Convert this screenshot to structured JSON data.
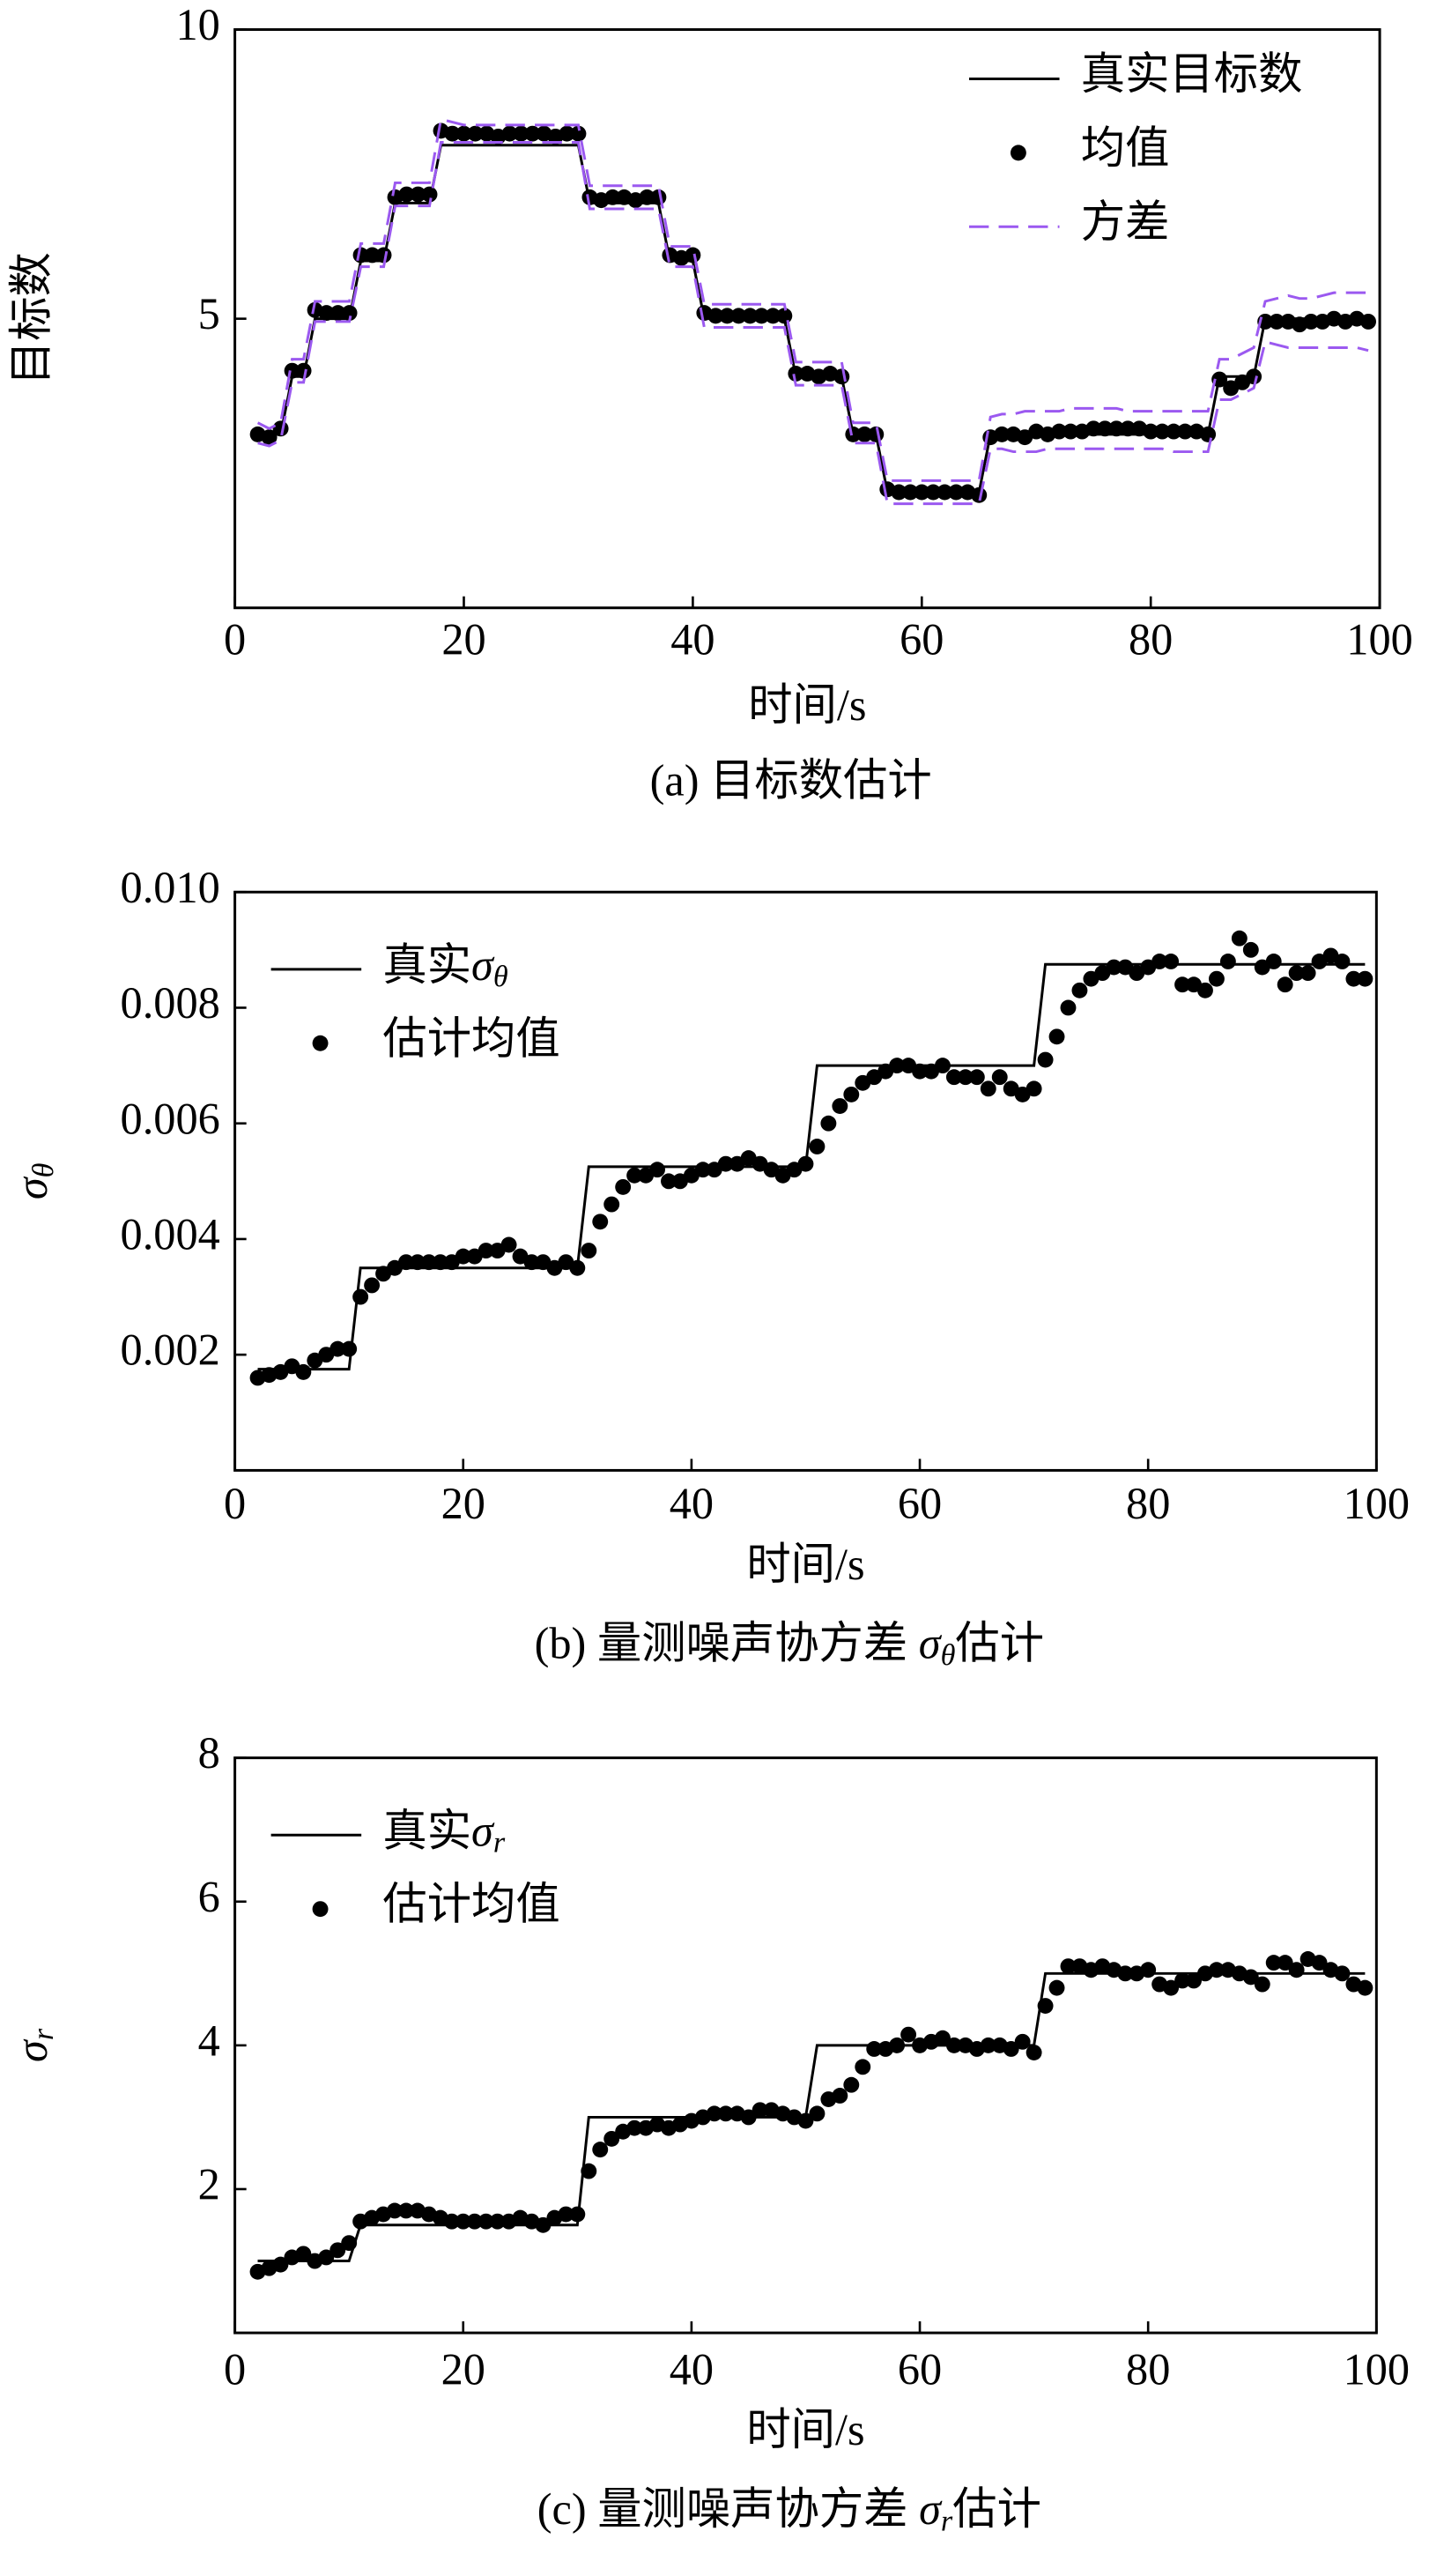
{
  "chart_data": [
    {
      "type": "line",
      "caption": "(a) 目标数估计",
      "xlabel": "时间/s",
      "ylabel": "目标数",
      "legend": "upper right",
      "xlim": [
        0,
        100
      ],
      "xticks": [
        0,
        20,
        40,
        60,
        80,
        100
      ],
      "ylim": [
        0,
        10
      ],
      "yticks": [
        5,
        10
      ],
      "x": [
        2,
        3,
        4,
        5,
        6,
        7,
        8,
        9,
        10,
        11,
        12,
        13,
        14,
        15,
        16,
        17,
        18,
        19,
        20,
        21,
        22,
        23,
        24,
        25,
        26,
        27,
        28,
        29,
        30,
        31,
        32,
        33,
        34,
        35,
        36,
        37,
        38,
        39,
        40,
        41,
        42,
        43,
        44,
        45,
        46,
        47,
        48,
        49,
        50,
        51,
        52,
        53,
        54,
        55,
        56,
        57,
        58,
        59,
        60,
        61,
        62,
        63,
        64,
        65,
        66,
        67,
        68,
        69,
        70,
        71,
        72,
        73,
        74,
        75,
        76,
        77,
        78,
        79,
        80,
        81,
        82,
        83,
        84,
        85,
        86,
        87,
        88,
        89,
        90,
        91,
        92,
        93,
        94,
        95,
        96,
        97,
        98,
        99
      ],
      "series": [
        {
          "name": "真实目标数",
          "style": "line",
          "color": "#000000",
          "values": [
            3,
            3,
            3,
            4,
            4,
            5,
            5,
            5,
            5,
            6,
            6,
            6,
            7,
            7,
            7,
            7,
            8,
            8,
            8,
            8,
            8,
            8,
            8,
            8,
            8,
            8,
            8,
            8,
            8,
            7,
            7,
            7,
            7,
            7,
            7,
            7,
            6,
            6,
            6,
            5,
            5,
            5,
            5,
            5,
            5,
            5,
            5,
            4,
            4,
            4,
            4,
            4,
            3,
            3,
            3,
            2,
            2,
            2,
            2,
            2,
            2,
            2,
            2,
            2,
            3,
            3,
            3,
            3,
            3,
            3,
            3,
            3,
            3,
            3,
            3,
            3,
            3,
            3,
            3,
            3,
            3,
            3,
            3,
            3,
            4,
            4,
            4,
            4,
            5,
            5,
            5,
            5,
            5,
            5,
            5,
            5,
            5,
            5
          ]
        },
        {
          "name": "均值",
          "style": "dots",
          "color": "#000000",
          "values": [
            3.0,
            2.95,
            3.1,
            4.1,
            4.1,
            5.15,
            5.1,
            5.1,
            5.1,
            6.1,
            6.1,
            6.1,
            7.1,
            7.15,
            7.15,
            7.15,
            8.25,
            8.2,
            8.2,
            8.2,
            8.2,
            8.15,
            8.2,
            8.2,
            8.2,
            8.2,
            8.15,
            8.2,
            8.2,
            7.1,
            7.05,
            7.1,
            7.1,
            7.05,
            7.1,
            7.1,
            6.1,
            6.05,
            6.1,
            5.1,
            5.05,
            5.05,
            5.05,
            5.05,
            5.05,
            5.05,
            5.05,
            4.05,
            4.05,
            4.0,
            4.05,
            4.0,
            3.0,
            3.0,
            3.0,
            2.05,
            2.0,
            2.0,
            2.0,
            2.0,
            2.0,
            2.0,
            2.0,
            1.95,
            2.95,
            3.0,
            3.0,
            2.95,
            3.05,
            3.0,
            3.05,
            3.05,
            3.05,
            3.1,
            3.1,
            3.1,
            3.1,
            3.1,
            3.05,
            3.05,
            3.05,
            3.05,
            3.05,
            3.0,
            3.95,
            3.8,
            3.9,
            4.0,
            4.95,
            4.95,
            4.95,
            4.9,
            4.95,
            4.95,
            5.0,
            4.95,
            5.0,
            4.95
          ]
        },
        {
          "name": "方差",
          "style": "band",
          "color": "#9b59f0",
          "upper": [
            3.2,
            3.1,
            3.2,
            4.3,
            4.3,
            5.3,
            5.3,
            5.3,
            5.3,
            6.3,
            6.3,
            6.3,
            7.35,
            7.35,
            7.35,
            7.35,
            8.45,
            8.4,
            8.35,
            8.35,
            8.35,
            8.35,
            8.35,
            8.35,
            8.35,
            8.35,
            8.35,
            8.35,
            8.35,
            7.3,
            7.3,
            7.3,
            7.3,
            7.3,
            7.3,
            7.3,
            6.25,
            6.25,
            6.25,
            5.25,
            5.25,
            5.25,
            5.25,
            5.25,
            5.25,
            5.25,
            5.25,
            4.25,
            4.25,
            4.25,
            4.25,
            4.25,
            3.2,
            3.2,
            3.2,
            2.2,
            2.2,
            2.2,
            2.2,
            2.2,
            2.2,
            2.2,
            2.2,
            2.2,
            3.3,
            3.35,
            3.35,
            3.4,
            3.4,
            3.4,
            3.4,
            3.45,
            3.45,
            3.45,
            3.45,
            3.45,
            3.4,
            3.4,
            3.4,
            3.4,
            3.4,
            3.4,
            3.4,
            3.4,
            4.3,
            4.3,
            4.4,
            4.5,
            5.3,
            5.35,
            5.4,
            5.35,
            5.35,
            5.4,
            5.45,
            5.45,
            5.45,
            5.45
          ],
          "lower": [
            2.85,
            2.8,
            2.9,
            3.9,
            3.9,
            4.95,
            4.95,
            4.95,
            4.95,
            5.9,
            5.9,
            5.9,
            6.95,
            6.95,
            6.95,
            6.95,
            8.05,
            8.05,
            8.05,
            8.05,
            8.05,
            8.05,
            8.05,
            8.05,
            8.05,
            8.05,
            8.05,
            8.05,
            8.05,
            6.9,
            6.9,
            6.9,
            6.9,
            6.9,
            6.9,
            6.9,
            5.9,
            5.9,
            5.9,
            4.85,
            4.85,
            4.85,
            4.85,
            4.85,
            4.85,
            4.85,
            4.85,
            3.85,
            3.85,
            3.85,
            3.85,
            3.85,
            2.85,
            2.85,
            2.85,
            1.8,
            1.8,
            1.8,
            1.8,
            1.8,
            1.8,
            1.8,
            1.8,
            1.8,
            2.75,
            2.75,
            2.7,
            2.7,
            2.7,
            2.75,
            2.75,
            2.75,
            2.75,
            2.75,
            2.75,
            2.75,
            2.75,
            2.75,
            2.75,
            2.75,
            2.7,
            2.7,
            2.7,
            2.7,
            3.6,
            3.6,
            3.7,
            3.8,
            4.6,
            4.55,
            4.5,
            4.5,
            4.5,
            4.5,
            4.5,
            4.5,
            4.5,
            4.45
          ]
        }
      ]
    },
    {
      "type": "line",
      "caption": "(b) 量测噪声协方差 σθ估计",
      "xlabel": "时间/s",
      "ylabel": "σθ",
      "legend": "upper left",
      "xlim": [
        0,
        100
      ],
      "xticks": [
        0,
        20,
        40,
        60,
        80,
        100
      ],
      "ylim": [
        0,
        0.01
      ],
      "yticks": [
        0.002,
        0.004,
        0.006,
        0.008,
        {
          "value": 0.01,
          "label": "0.010"
        }
      ],
      "x": [
        2,
        3,
        4,
        5,
        6,
        7,
        8,
        9,
        10,
        11,
        12,
        13,
        14,
        15,
        16,
        17,
        18,
        19,
        20,
        21,
        22,
        23,
        24,
        25,
        26,
        27,
        28,
        29,
        30,
        31,
        32,
        33,
        34,
        35,
        36,
        37,
        38,
        39,
        40,
        41,
        42,
        43,
        44,
        45,
        46,
        47,
        48,
        49,
        50,
        51,
        52,
        53,
        54,
        55,
        56,
        57,
        58,
        59,
        60,
        61,
        62,
        63,
        64,
        65,
        66,
        67,
        68,
        69,
        70,
        71,
        72,
        73,
        74,
        75,
        76,
        77,
        78,
        79,
        80,
        81,
        82,
        83,
        84,
        85,
        86,
        87,
        88,
        89,
        90,
        91,
        92,
        93,
        94,
        95,
        96,
        97,
        98,
        99
      ],
      "series": [
        {
          "name": "真实σθ",
          "style": "line",
          "color": "#000000",
          "values": [
            0.00175,
            0.00175,
            0.00175,
            0.00175,
            0.00175,
            0.00175,
            0.00175,
            0.00175,
            0.00175,
            0.0035,
            0.0035,
            0.0035,
            0.0035,
            0.0035,
            0.0035,
            0.0035,
            0.0035,
            0.0035,
            0.0035,
            0.0035,
            0.0035,
            0.0035,
            0.0035,
            0.0035,
            0.0035,
            0.0035,
            0.0035,
            0.0035,
            0.0035,
            0.00525,
            0.00525,
            0.00525,
            0.00525,
            0.00525,
            0.00525,
            0.00525,
            0.00525,
            0.00525,
            0.00525,
            0.00525,
            0.00525,
            0.00525,
            0.00525,
            0.00525,
            0.00525,
            0.00525,
            0.00525,
            0.00525,
            0.00525,
            0.007,
            0.007,
            0.007,
            0.007,
            0.007,
            0.007,
            0.007,
            0.007,
            0.007,
            0.007,
            0.007,
            0.007,
            0.007,
            0.007,
            0.007,
            0.007,
            0.007,
            0.007,
            0.007,
            0.007,
            0.00875,
            0.00875,
            0.00875,
            0.00875,
            0.00875,
            0.00875,
            0.00875,
            0.00875,
            0.00875,
            0.00875,
            0.00875,
            0.00875,
            0.00875,
            0.00875,
            0.00875,
            0.00875,
            0.00875,
            0.00875,
            0.00875,
            0.00875,
            0.00875,
            0.00875,
            0.00875,
            0.00875,
            0.00875,
            0.00875,
            0.00875,
            0.00875,
            0.00875
          ]
        },
        {
          "name": "估计均值",
          "style": "dots",
          "color": "#000000",
          "values": [
            0.0016,
            0.00165,
            0.0017,
            0.0018,
            0.0017,
            0.0019,
            0.002,
            0.0021,
            0.0021,
            0.003,
            0.0032,
            0.0034,
            0.0035,
            0.0036,
            0.0036,
            0.0036,
            0.0036,
            0.0036,
            0.0037,
            0.0037,
            0.0038,
            0.0038,
            0.0039,
            0.0037,
            0.0036,
            0.0036,
            0.0035,
            0.0036,
            0.0035,
            0.0038,
            0.0043,
            0.0046,
            0.0049,
            0.0051,
            0.0051,
            0.0052,
            0.005,
            0.005,
            0.0051,
            0.0052,
            0.0052,
            0.0053,
            0.0053,
            0.0054,
            0.0053,
            0.0052,
            0.0051,
            0.0052,
            0.0053,
            0.0056,
            0.006,
            0.0063,
            0.0065,
            0.0067,
            0.0068,
            0.0069,
            0.007,
            0.007,
            0.0069,
            0.0069,
            0.007,
            0.0068,
            0.0068,
            0.0068,
            0.0066,
            0.0068,
            0.0066,
            0.0065,
            0.0066,
            0.0071,
            0.0075,
            0.008,
            0.0083,
            0.0085,
            0.0086,
            0.0087,
            0.0087,
            0.0086,
            0.0087,
            0.0088,
            0.0088,
            0.0084,
            0.0084,
            0.0083,
            0.0085,
            0.0088,
            0.0092,
            0.009,
            0.0087,
            0.0088,
            0.0084,
            0.0086,
            0.0086,
            0.0088,
            0.0089,
            0.0088,
            0.0085,
            0.0085
          ]
        }
      ]
    },
    {
      "type": "line",
      "caption": "(c) 量测噪声协方差 σr估计",
      "xlabel": "时间/s",
      "ylabel": "σr",
      "legend": "upper left",
      "xlim": [
        0,
        100
      ],
      "xticks": [
        0,
        20,
        40,
        60,
        80,
        100
      ],
      "ylim": [
        0,
        8
      ],
      "yticks": [
        2,
        4,
        6,
        8
      ],
      "x": [
        2,
        3,
        4,
        5,
        6,
        7,
        8,
        9,
        10,
        11,
        12,
        13,
        14,
        15,
        16,
        17,
        18,
        19,
        20,
        21,
        22,
        23,
        24,
        25,
        26,
        27,
        28,
        29,
        30,
        31,
        32,
        33,
        34,
        35,
        36,
        37,
        38,
        39,
        40,
        41,
        42,
        43,
        44,
        45,
        46,
        47,
        48,
        49,
        50,
        51,
        52,
        53,
        54,
        55,
        56,
        57,
        58,
        59,
        60,
        61,
        62,
        63,
        64,
        65,
        66,
        67,
        68,
        69,
        70,
        71,
        72,
        73,
        74,
        75,
        76,
        77,
        78,
        79,
        80,
        81,
        82,
        83,
        84,
        85,
        86,
        87,
        88,
        89,
        90,
        91,
        92,
        93,
        94,
        95,
        96,
        97,
        98,
        99
      ],
      "series": [
        {
          "name": "真实σr",
          "style": "line",
          "color": "#000000",
          "values": [
            1,
            1,
            1,
            1,
            1,
            1,
            1,
            1,
            1,
            1.5,
            1.5,
            1.5,
            1.5,
            1.5,
            1.5,
            1.5,
            1.5,
            1.5,
            1.5,
            1.5,
            1.5,
            1.5,
            1.5,
            1.5,
            1.5,
            1.5,
            1.5,
            1.5,
            1.5,
            3,
            3,
            3,
            3,
            3,
            3,
            3,
            3,
            3,
            3,
            3,
            3,
            3,
            3,
            3,
            3,
            3,
            3,
            3,
            3,
            4,
            4,
            4,
            4,
            4,
            4,
            4,
            4,
            4,
            4,
            4,
            4,
            4,
            4,
            4,
            4,
            4,
            4,
            4,
            4,
            5,
            5,
            5,
            5,
            5,
            5,
            5,
            5,
            5,
            5,
            5,
            5,
            5,
            5,
            5,
            5,
            5,
            5,
            5,
            5,
            5,
            5,
            5,
            5,
            5,
            5,
            5,
            5,
            5
          ]
        },
        {
          "name": "估计均值",
          "style": "dots",
          "color": "#000000",
          "values": [
            0.85,
            0.9,
            0.95,
            1.05,
            1.1,
            1.0,
            1.05,
            1.15,
            1.25,
            1.55,
            1.6,
            1.65,
            1.7,
            1.7,
            1.7,
            1.65,
            1.6,
            1.55,
            1.55,
            1.55,
            1.55,
            1.55,
            1.55,
            1.6,
            1.55,
            1.5,
            1.6,
            1.65,
            1.65,
            2.25,
            2.55,
            2.7,
            2.8,
            2.85,
            2.85,
            2.9,
            2.85,
            2.9,
            2.95,
            3.0,
            3.05,
            3.05,
            3.05,
            3.0,
            3.1,
            3.1,
            3.05,
            3.0,
            2.95,
            3.05,
            3.25,
            3.3,
            3.45,
            3.7,
            3.95,
            3.95,
            4.0,
            4.15,
            4.0,
            4.05,
            4.1,
            4.0,
            4.0,
            3.95,
            4.0,
            4.0,
            3.95,
            4.05,
            3.9,
            4.55,
            4.8,
            5.1,
            5.1,
            5.05,
            5.1,
            5.05,
            5.0,
            5.0,
            5.05,
            4.85,
            4.8,
            4.9,
            4.9,
            5.0,
            5.05,
            5.05,
            5.0,
            4.95,
            4.85,
            5.15,
            5.15,
            5.05,
            5.2,
            5.15,
            5.05,
            5.0,
            4.85,
            4.8
          ]
        }
      ]
    }
  ]
}
